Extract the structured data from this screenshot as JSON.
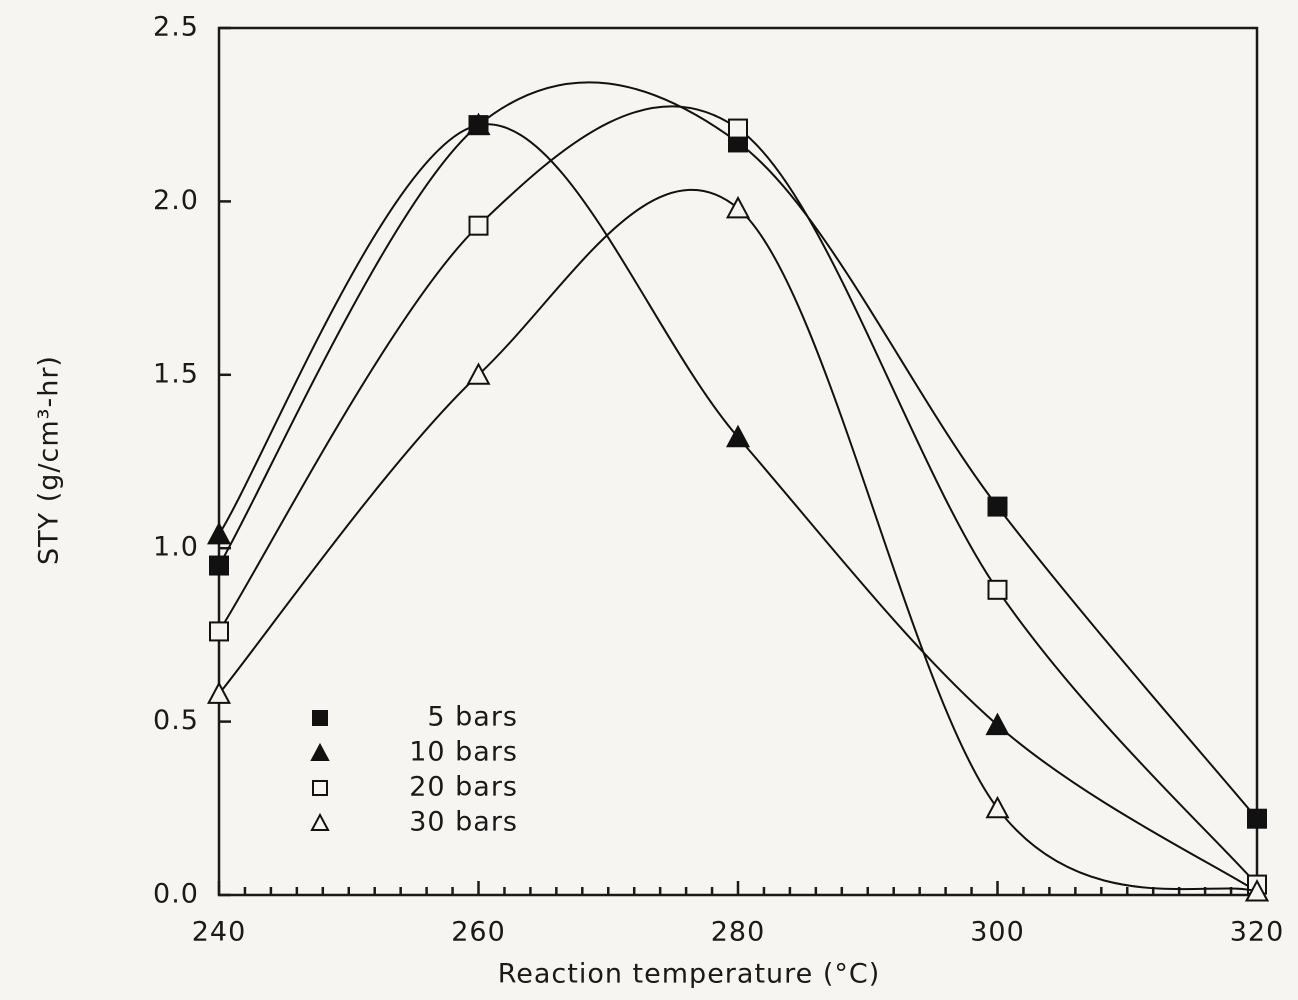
{
  "chart_data": {
    "type": "line",
    "x_label": "Reaction temperature (°C)",
    "y_label": "STY (g/cm³-hr)",
    "x": [
      240,
      260,
      280,
      300,
      320
    ],
    "series": [
      {
        "name": "5 bars",
        "marker": "square-filled",
        "color": "#111111",
        "values": [
          0.95,
          2.22,
          2.17,
          1.12,
          0.22
        ]
      },
      {
        "name": "10 bars",
        "marker": "triangle-filled",
        "color": "#111111",
        "values": [
          1.04,
          2.22,
          1.32,
          0.49,
          0.01
        ]
      },
      {
        "name": "20 bars",
        "marker": "square-open",
        "color": "#111111",
        "values": [
          0.76,
          1.93,
          2.21,
          0.88,
          0.03
        ]
      },
      {
        "name": "30 bars",
        "marker": "triangle-open",
        "color": "#111111",
        "values": [
          0.58,
          1.5,
          1.98,
          0.25,
          0.01
        ]
      }
    ],
    "xlim": [
      240,
      320
    ],
    "xticks": [
      240,
      260,
      280,
      300,
      320
    ],
    "xminorticks": [
      242,
      244,
      246,
      248,
      250,
      252,
      254,
      256,
      258,
      262,
      264,
      266,
      268,
      270,
      272,
      274,
      276,
      278,
      282,
      284,
      286,
      288,
      290,
      292,
      294,
      296,
      298,
      302,
      304,
      306,
      308,
      310,
      312,
      314,
      316,
      318
    ],
    "ylim": [
      0,
      2.5
    ],
    "yticks": [
      {
        "value": 0,
        "label": "0.0"
      },
      {
        "value": 0.5,
        "label": "0.5"
      },
      {
        "value": 1,
        "label": "1.0"
      },
      {
        "value": 1.5,
        "label": "1.5"
      },
      {
        "value": 2,
        "label": "2.0"
      },
      {
        "value": 2.5,
        "label": "2.5"
      }
    ],
    "legend": "lower-left",
    "grid": false
  }
}
